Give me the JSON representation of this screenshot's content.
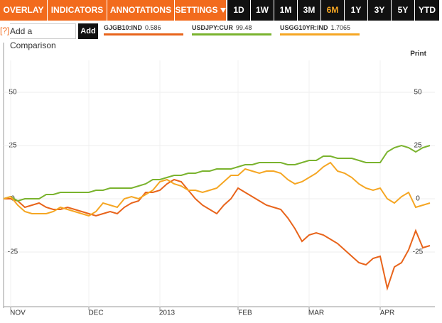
{
  "toolbar": {
    "menus": [
      "OVERLAY",
      "INDICATORS",
      "ANNOTATIONS",
      "SETTINGS"
    ],
    "ranges": [
      "1D",
      "1W",
      "1M",
      "3M",
      "6M",
      "1Y",
      "3Y",
      "5Y",
      "YTD"
    ],
    "active_range": 4
  },
  "comparison": {
    "help": "[?]",
    "placeholder": "Add a Comparison",
    "button": "Add"
  },
  "print": "Print",
  "chart_data": {
    "type": "line",
    "categories": [
      null,
      "NOV",
      null,
      null,
      null,
      null,
      null,
      null,
      null,
      null,
      null,
      null,
      "DEC",
      null,
      null,
      null,
      null,
      null,
      null,
      null,
      null,
      null,
      "2013",
      null,
      null,
      null,
      null,
      null,
      null,
      null,
      null,
      null,
      null,
      "FEB",
      null,
      null,
      null,
      null,
      null,
      null,
      null,
      null,
      null,
      "MAR",
      null,
      null,
      null,
      null,
      null,
      null,
      null,
      null,
      null,
      "APR",
      null,
      null,
      null,
      null,
      null,
      null,
      null
    ],
    "ylim": [
      -50,
      65
    ],
    "yticks": [
      -25,
      0,
      25,
      50
    ],
    "grid": true,
    "series": [
      {
        "name": "GJGB10:IND",
        "last": 0.586,
        "color": "#e8641b",
        "values": [
          0,
          0,
          -1,
          -4,
          -3,
          -2,
          -4,
          -5,
          -5,
          -4,
          -5,
          -6,
          -7,
          -8,
          -7,
          -6,
          -7,
          -4,
          -2,
          -1,
          3,
          3,
          4,
          7,
          9,
          8,
          4,
          0,
          -3,
          -5,
          -7,
          -3,
          0,
          5,
          3,
          1,
          -1,
          -3,
          -4,
          -5,
          -9,
          -14,
          -20,
          -17,
          -16,
          -17,
          -19,
          -21,
          -24,
          -27,
          -30,
          -31,
          -28,
          -27,
          -42,
          -32,
          -30,
          -24,
          -15,
          -23,
          -22
        ]
      },
      {
        "name": "USDJPY:CUR",
        "last": 99.48,
        "color": "#7ab32e",
        "values": [
          0,
          1,
          -1,
          0,
          0,
          0,
          2,
          2,
          3,
          3,
          3,
          3,
          3,
          4,
          4,
          5,
          5,
          5,
          5,
          6,
          7,
          9,
          9,
          10,
          11,
          11,
          12,
          12,
          13,
          13,
          14,
          14,
          14,
          15,
          16,
          16,
          17,
          17,
          17,
          17,
          16,
          16,
          17,
          18,
          18,
          20,
          20,
          19,
          19,
          19,
          18,
          17,
          17,
          17,
          22,
          24,
          25,
          24,
          22,
          24,
          25
        ]
      },
      {
        "name": "USGG10YR:IND",
        "last": 1.7065,
        "color": "#f5a623",
        "values": [
          0,
          1,
          -3,
          -6,
          -7,
          -7,
          -7,
          -6,
          -4,
          -5,
          -6,
          -7,
          -8,
          -6,
          -2,
          -3,
          -4,
          0,
          1,
          0,
          2,
          4,
          8,
          9,
          7,
          6,
          4,
          4,
          3,
          4,
          5,
          8,
          11,
          11,
          14,
          13,
          12,
          13,
          13,
          12,
          9,
          7,
          8,
          10,
          12,
          15,
          17,
          13,
          12,
          10,
          7,
          5,
          4,
          5,
          0,
          -2,
          1,
          3,
          -4,
          -3,
          -2
        ]
      }
    ]
  }
}
